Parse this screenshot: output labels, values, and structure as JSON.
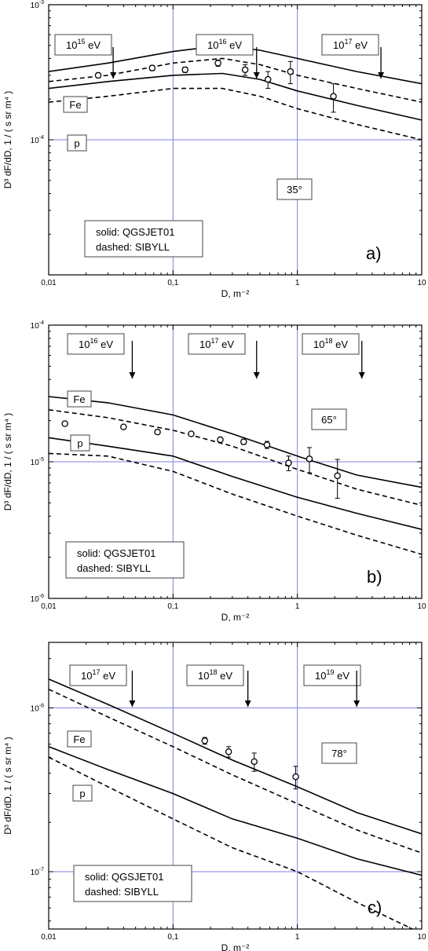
{
  "chart_data": [
    {
      "type": "line",
      "panel_label": "a)",
      "angle_label": "35°",
      "xlabel": "D, m⁻²",
      "ylabel": "D³ dF/dD, 1 / ( s sr m⁴ )",
      "xscale": "log",
      "yscale": "log",
      "xlim": [
        0.01,
        10
      ],
      "ylim_exp": [
        -5,
        -3
      ],
      "x_ticks": [
        "0,01",
        "0,1",
        "1",
        "10"
      ],
      "y_ticks": [
        {
          "v": 0.0001,
          "base": "10",
          "exp": "-4"
        },
        {
          "v": 0.001,
          "base": "10",
          "exp": "-3"
        }
      ],
      "hlines": [
        0.0001,
        0.001
      ],
      "vlines": [
        0.1,
        1
      ],
      "energy_markers": [
        {
          "mantissa": "10",
          "exp": "15",
          "unit": "eV",
          "arrow_x": 0.033
        },
        {
          "mantissa": "10",
          "exp": "16",
          "unit": "eV",
          "arrow_x": 0.47
        },
        {
          "mantissa": "10",
          "exp": "17",
          "unit": "eV",
          "arrow_x": 4.7
        }
      ],
      "curve_labels": [
        {
          "text": "Fe",
          "series": "Fe QGSJET01"
        },
        {
          "text": "p",
          "series": "p SIBYLL"
        }
      ],
      "legend_lines": [
        "solid: QGSJET01",
        "dashed: SIBYLL"
      ],
      "series": [
        {
          "style": "solid",
          "x": [
            0.01,
            0.03,
            0.1,
            0.25,
            0.5,
            1,
            3,
            10
          ],
          "y": [
            0.00032,
            0.00037,
            0.00045,
            0.0005,
            0.00046,
            0.0004,
            0.00032,
            0.00026
          ]
        },
        {
          "style": "dashed",
          "x": [
            0.01,
            0.03,
            0.1,
            0.25,
            0.5,
            1,
            3,
            10
          ],
          "y": [
            0.00027,
            0.0003,
            0.00037,
            0.0004,
            0.00036,
            0.0003,
            0.00024,
            0.00019
          ]
        },
        {
          "style": "solid",
          "x": [
            0.01,
            0.03,
            0.1,
            0.25,
            0.5,
            1,
            3,
            10
          ],
          "y": [
            0.00024,
            0.00027,
            0.0003,
            0.00031,
            0.00028,
            0.00023,
            0.00018,
            0.00014
          ]
        },
        {
          "style": "dashed",
          "x": [
            0.01,
            0.03,
            0.1,
            0.25,
            0.5,
            1,
            3,
            10
          ],
          "y": [
            0.00019,
            0.00021,
            0.00024,
            0.00024,
            0.00021,
            0.00017,
            0.00013,
            0.0001
          ]
        }
      ],
      "points": [
        {
          "x": 0.025,
          "y": 0.0003,
          "err": 1.2e-05
        },
        {
          "x": 0.068,
          "y": 0.00034,
          "err": 1.5e-05
        },
        {
          "x": 0.125,
          "y": 0.00033,
          "err": 1.5e-05
        },
        {
          "x": 0.23,
          "y": 0.00037,
          "err": 2e-05
        },
        {
          "x": 0.38,
          "y": 0.00033,
          "err": 3e-05
        },
        {
          "x": 0.58,
          "y": 0.00028,
          "err": 4e-05
        },
        {
          "x": 0.88,
          "y": 0.00032,
          "err": 6e-05
        },
        {
          "x": 1.95,
          "y": 0.00021,
          "err": 5e-05
        }
      ]
    },
    {
      "type": "line",
      "panel_label": "b)",
      "angle_label": "65°",
      "xlabel": "D, m⁻²",
      "ylabel": "D³ dF/dD, 1 / ( s sr m⁴ )",
      "xscale": "log",
      "yscale": "log",
      "xlim": [
        0.01,
        10
      ],
      "ylim_exp": [
        -6,
        -4
      ],
      "x_ticks": [
        "0,01",
        "0,1",
        "1",
        "10"
      ],
      "y_ticks": [
        {
          "v": 1e-06,
          "base": "10",
          "exp": "-6"
        },
        {
          "v": 1e-05,
          "base": "10",
          "exp": "-5"
        },
        {
          "v": 0.0001,
          "base": "10",
          "exp": "-4"
        }
      ],
      "hlines": [
        1e-05
      ],
      "vlines": [
        0.1,
        1
      ],
      "energy_markers": [
        {
          "mantissa": "10",
          "exp": "16",
          "unit": "eV",
          "arrow_x": 0.047
        },
        {
          "mantissa": "10",
          "exp": "17",
          "unit": "eV",
          "arrow_x": 0.47
        },
        {
          "mantissa": "10",
          "exp": "18",
          "unit": "eV",
          "arrow_x": 3.3
        }
      ],
      "curve_labels": [
        {
          "text": "Fe",
          "series": "Fe QGSJET01"
        },
        {
          "text": "p",
          "series": "p SIBYLL"
        }
      ],
      "legend_lines": [
        "solid: QGSJET01",
        "dashed: SIBYLL"
      ],
      "series": [
        {
          "style": "solid",
          "x": [
            0.01,
            0.03,
            0.1,
            0.3,
            1,
            3,
            10
          ],
          "y": [
            3e-05,
            2.7e-05,
            2.2e-05,
            1.6e-05,
            1.1e-05,
            8e-06,
            6.5e-06
          ]
        },
        {
          "style": "dashed",
          "x": [
            0.01,
            0.03,
            0.1,
            0.3,
            1,
            3,
            10
          ],
          "y": [
            2.4e-05,
            2.1e-05,
            1.7e-05,
            1.3e-05,
            8.8e-06,
            6.3e-06,
            4.8e-06
          ]
        },
        {
          "style": "solid",
          "x": [
            0.01,
            0.03,
            0.1,
            0.3,
            1,
            3,
            10
          ],
          "y": [
            1.5e-05,
            1.3e-05,
            1.1e-05,
            7.8e-06,
            5.5e-06,
            4.2e-06,
            3.2e-06
          ]
        },
        {
          "style": "dashed",
          "x": [
            0.01,
            0.03,
            0.1,
            0.3,
            1,
            3,
            10
          ],
          "y": [
            1.15e-05,
            1.1e-05,
            8.5e-06,
            5.8e-06,
            4e-06,
            2.9e-06,
            2.1e-06
          ]
        }
      ],
      "points": [
        {
          "x": 0.0135,
          "y": 1.9e-05,
          "err": 5e-07
        },
        {
          "x": 0.04,
          "y": 1.8e-05,
          "err": 5e-07
        },
        {
          "x": 0.075,
          "y": 1.65e-05,
          "err": 5e-07
        },
        {
          "x": 0.14,
          "y": 1.6e-05,
          "err": 5e-07
        },
        {
          "x": 0.24,
          "y": 1.45e-05,
          "err": 5e-07
        },
        {
          "x": 0.37,
          "y": 1.4e-05,
          "err": 6e-07
        },
        {
          "x": 0.57,
          "y": 1.33e-05,
          "err": 8e-07
        },
        {
          "x": 0.85,
          "y": 9.8e-06,
          "err": 1.2e-06
        },
        {
          "x": 1.25,
          "y": 1.05e-05,
          "err": 2.2e-06
        },
        {
          "x": 2.1,
          "y": 7.9e-06,
          "err": 2.5e-06
        }
      ]
    },
    {
      "type": "line",
      "panel_label": "c)",
      "angle_label": "78°",
      "xlabel": "D, m⁻²",
      "ylabel": "D³ dF/dD, 1 / ( s sr m⁴ )",
      "xscale": "log",
      "yscale": "log",
      "xlim": [
        0.01,
        10
      ],
      "ylim_exp": [
        -7.35,
        -5.6
      ],
      "x_ticks": [
        "0,01",
        "0,1",
        "1",
        "10"
      ],
      "y_ticks": [
        {
          "v": 1e-07,
          "base": "10",
          "exp": "-7"
        },
        {
          "v": 1e-06,
          "base": "10",
          "exp": "-6"
        }
      ],
      "hlines": [
        1e-07,
        1e-06
      ],
      "vlines": [
        0.1,
        1
      ],
      "energy_markers": [
        {
          "mantissa": "10",
          "exp": "17",
          "unit": "eV",
          "arrow_x": 0.047
        },
        {
          "mantissa": "10",
          "exp": "18",
          "unit": "eV",
          "arrow_x": 0.4
        },
        {
          "mantissa": "10",
          "exp": "19",
          "unit": "eV",
          "arrow_x": 3
        }
      ],
      "curve_labels": [
        {
          "text": "Fe",
          "series": "Fe QGSJET01"
        },
        {
          "text": "p",
          "series": "p SIBYLL"
        }
      ],
      "legend_lines": [
        "solid: QGSJET01",
        "dashed: SIBYLL"
      ],
      "series": [
        {
          "style": "solid",
          "x": [
            0.01,
            0.03,
            0.1,
            0.3,
            1,
            3,
            10
          ],
          "y": [
            1.5e-06,
            1.05e-06,
            7e-07,
            4.8e-07,
            3.3e-07,
            2.3e-07,
            1.7e-07
          ]
        },
        {
          "style": "dashed",
          "x": [
            0.01,
            0.03,
            0.1,
            0.3,
            1,
            3,
            10
          ],
          "y": [
            1.3e-06,
            8.8e-07,
            5.8e-07,
            3.9e-07,
            2.6e-07,
            1.8e-07,
            1.3e-07
          ]
        },
        {
          "style": "solid",
          "x": [
            0.01,
            0.03,
            0.1,
            0.3,
            1,
            3,
            10
          ],
          "y": [
            5.8e-07,
            4.2e-07,
            3e-07,
            2.1e-07,
            1.6e-07,
            1.2e-07,
            9.5e-08
          ]
        },
        {
          "style": "dashed",
          "x": [
            0.01,
            0.03,
            0.1,
            0.3,
            1,
            3,
            10
          ],
          "y": [
            5e-07,
            3.3e-07,
            2.1e-07,
            1.4e-07,
            1e-07,
            6.5e-08,
            4.2e-08
          ]
        }
      ],
      "points": [
        {
          "x": 0.18,
          "y": 6.3e-07,
          "err": 3e-08
        },
        {
          "x": 0.28,
          "y": 5.4e-07,
          "err": 4e-08
        },
        {
          "x": 0.45,
          "y": 4.7e-07,
          "err": 6e-08
        },
        {
          "x": 0.97,
          "y": 3.8e-07,
          "err": 6e-08
        }
      ]
    }
  ]
}
